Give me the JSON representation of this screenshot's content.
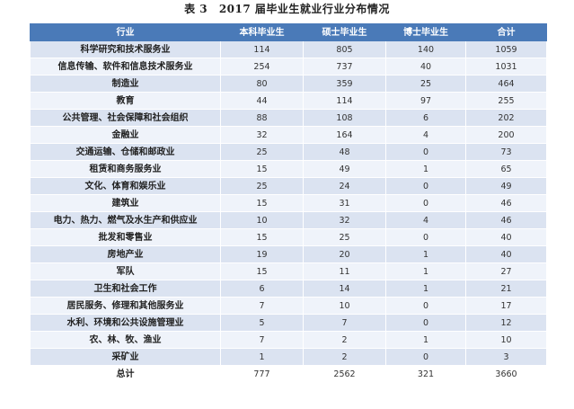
{
  "caption": {
    "label": "表 3",
    "title": "2017 届毕业生就业行业分布情况"
  },
  "headers": [
    "行业",
    "本科毕业生",
    "硕士毕业生",
    "博士毕业生",
    "合计"
  ],
  "rows": [
    {
      "industry": "科学研究和技术服务业",
      "bachelor": "114",
      "master": "805",
      "doctor": "140",
      "total": "1059"
    },
    {
      "industry": "信息传输、软件和信息技术服务业",
      "bachelor": "254",
      "master": "737",
      "doctor": "40",
      "total": "1031"
    },
    {
      "industry": "制造业",
      "bachelor": "80",
      "master": "359",
      "doctor": "25",
      "total": "464"
    },
    {
      "industry": "教育",
      "bachelor": "44",
      "master": "114",
      "doctor": "97",
      "total": "255"
    },
    {
      "industry": "公共管理、社会保障和社会组织",
      "bachelor": "88",
      "master": "108",
      "doctor": "6",
      "total": "202"
    },
    {
      "industry": "金融业",
      "bachelor": "32",
      "master": "164",
      "doctor": "4",
      "total": "200"
    },
    {
      "industry": "交通运输、仓储和邮政业",
      "bachelor": "25",
      "master": "48",
      "doctor": "0",
      "total": "73"
    },
    {
      "industry": "租赁和商务服务业",
      "bachelor": "15",
      "master": "49",
      "doctor": "1",
      "total": "65"
    },
    {
      "industry": "文化、体育和娱乐业",
      "bachelor": "25",
      "master": "24",
      "doctor": "0",
      "total": "49"
    },
    {
      "industry": "建筑业",
      "bachelor": "15",
      "master": "31",
      "doctor": "0",
      "total": "46"
    },
    {
      "industry": "电力、热力、燃气及水生产和供应业",
      "bachelor": "10",
      "master": "32",
      "doctor": "4",
      "total": "46"
    },
    {
      "industry": "批发和零售业",
      "bachelor": "15",
      "master": "25",
      "doctor": "0",
      "total": "40"
    },
    {
      "industry": "房地产业",
      "bachelor": "19",
      "master": "20",
      "doctor": "1",
      "total": "40"
    },
    {
      "industry": "军队",
      "bachelor": "15",
      "master": "11",
      "doctor": "1",
      "total": "27"
    },
    {
      "industry": "卫生和社会工作",
      "bachelor": "6",
      "master": "14",
      "doctor": "1",
      "total": "21"
    },
    {
      "industry": "居民服务、修理和其他服务业",
      "bachelor": "7",
      "master": "10",
      "doctor": "0",
      "total": "17"
    },
    {
      "industry": "水利、环境和公共设施管理业",
      "bachelor": "5",
      "master": "7",
      "doctor": "0",
      "total": "12"
    },
    {
      "industry": "农、林、牧、渔业",
      "bachelor": "7",
      "master": "2",
      "doctor": "1",
      "total": "10"
    },
    {
      "industry": "采矿业",
      "bachelor": "1",
      "master": "2",
      "doctor": "0",
      "total": "3"
    },
    {
      "industry": "总计",
      "bachelor": "777",
      "master": "2562",
      "doctor": "321",
      "total": "3660"
    }
  ],
  "colors": {
    "header_bg": "#4a7ab8",
    "row_odd": "#dbe3f1",
    "row_even": "#eff3fa"
  }
}
